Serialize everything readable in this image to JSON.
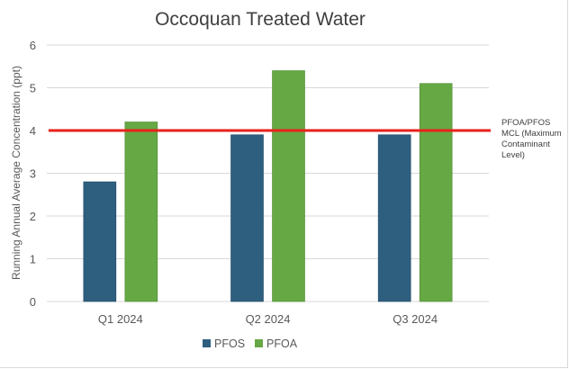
{
  "chart_data": {
    "type": "bar",
    "title": "Occoquan Treated Water",
    "xlabel": "",
    "ylabel": "Running Annual Average Concentration (ppt)",
    "categories": [
      "Q1 2024",
      "Q2 2024",
      "Q3 2024"
    ],
    "series": [
      {
        "name": "PFOS",
        "values": [
          2.8,
          3.9,
          3.9
        ],
        "color": "#2e5f7f"
      },
      {
        "name": "PFOA",
        "values": [
          4.2,
          5.4,
          5.1
        ],
        "color": "#66a844"
      }
    ],
    "reference_line": {
      "value": 4.0,
      "label": "PFOA/PFOS MCL (Maximum Contaminant Level)",
      "label_lines": [
        "PFOA/PFOS",
        "MCL (Maximum",
        "Contaminant",
        "Level)"
      ],
      "color": "#e8221b"
    },
    "ylim": [
      0,
      6
    ],
    "yticks": [
      0,
      1,
      2,
      3,
      4,
      5,
      6
    ],
    "grid": true,
    "legend": "bottom"
  }
}
